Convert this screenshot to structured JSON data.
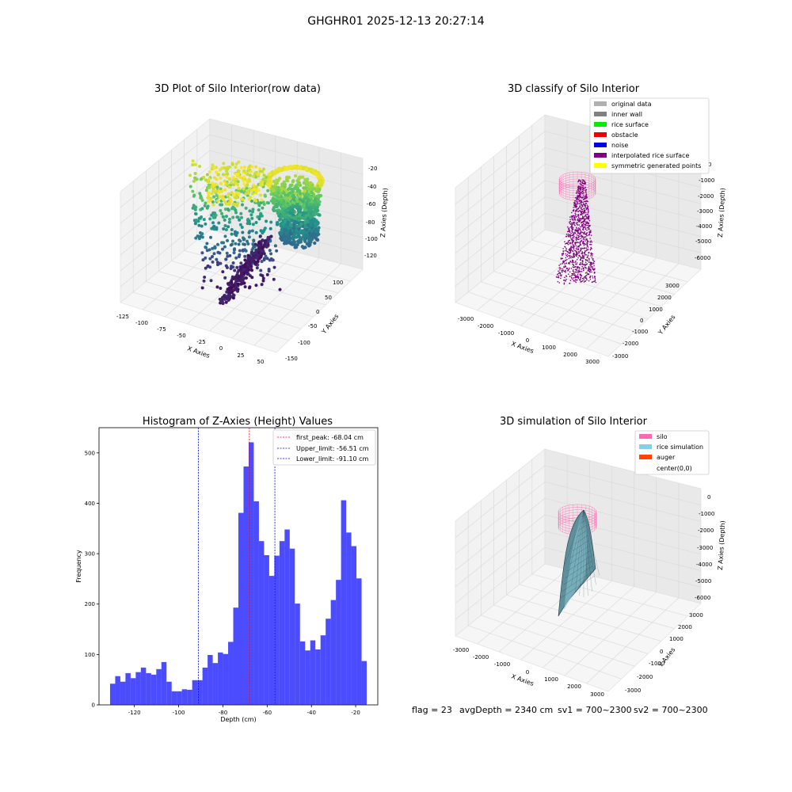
{
  "suptitle": "GHGHR01 2025-12-13 20:27:14",
  "panels": {
    "raw": {
      "title": "3D Plot of Silo Interior(row data)",
      "xlabel": "X Axies",
      "ylabel": "Y Axies",
      "zlabel": "Z Axies (Depth)",
      "xticks": [
        "-125",
        "-100",
        "-75",
        "-50",
        "-25",
        "0",
        "25",
        "50"
      ],
      "yticks": [
        "100",
        "50",
        "0",
        "-50",
        "-100",
        "-150"
      ],
      "zticks": [
        "-20",
        "-40",
        "-60",
        "-80",
        "-100",
        "-120"
      ],
      "colormap": "viridis"
    },
    "classify": {
      "title": "3D classify of Silo Interior",
      "xlabel": "X Axies",
      "ylabel": "Y Axies",
      "zlabel": "Z Axies (Depth)",
      "xticks": [
        "-3000",
        "-2000",
        "-1000",
        "0",
        "1000",
        "2000",
        "3000"
      ],
      "yticks": [
        "3000",
        "2000",
        "1000",
        "0",
        "-1000",
        "-2000",
        "-3000"
      ],
      "zticks": [
        "0",
        "-1000",
        "-2000",
        "-3000",
        "-4000",
        "-5000",
        "-6000"
      ],
      "legend": [
        {
          "label": "original data",
          "color": "#b0b0b0"
        },
        {
          "label": "inner wall",
          "color": "#808080"
        },
        {
          "label": "rice surface",
          "color": "#00ee00"
        },
        {
          "label": "obstacle",
          "color": "#ee0000"
        },
        {
          "label": "noise",
          "color": "#0000dd"
        },
        {
          "label": "interpolated rice surface",
          "color": "#800080"
        },
        {
          "label": "symmetric generated points",
          "color": "#ffff00"
        }
      ]
    },
    "simulation": {
      "title": "3D simulation of Silo Interior",
      "xlabel": "X Axies",
      "ylabel": "Y Axies",
      "zlabel": "Z Axies (Depth)",
      "xticks": [
        "-3000",
        "-2000",
        "-1000",
        "0",
        "1000",
        "2000",
        "3000"
      ],
      "yticks": [
        "3000",
        "2000",
        "1000",
        "0",
        "-1000",
        "-2000",
        "-3000"
      ],
      "zticks": [
        "0",
        "-1000",
        "-2000",
        "-3000",
        "-4000",
        "-5000",
        "-6000"
      ],
      "legend": [
        {
          "label": "silo",
          "color": "#ff69b4"
        },
        {
          "label": "rice simulation",
          "color": "#87ceeb"
        },
        {
          "label": "auger",
          "color": "#ff4500"
        },
        {
          "label": "center(0,0)",
          "color": "none"
        }
      ],
      "status": {
        "flag": "flag = 23",
        "avg": "avgDepth = 2340 cm",
        "sv1": "sv1 = 700~2300",
        "sv2": "sv2 = 700~2300"
      }
    }
  },
  "chart_data": {
    "type": "bar",
    "title": "Histogram of Z-Axies (Height) Values",
    "xlabel": "Depth (cm)",
    "ylabel": "Frequency",
    "xlim": [
      -136,
      -10
    ],
    "ylim": [
      0,
      550
    ],
    "xticks": [
      -120,
      -100,
      -80,
      -60,
      -40,
      -20
    ],
    "yticks": [
      0,
      100,
      200,
      300,
      400,
      500
    ],
    "bar_color": "#0000ff",
    "bin_start": -131.0,
    "bin_width": 2.32,
    "values": [
      42,
      57,
      46,
      63,
      53,
      65,
      74,
      63,
      60,
      71,
      85,
      46,
      27,
      27,
      31,
      30,
      49,
      49,
      74,
      99,
      83,
      104,
      101,
      125,
      193,
      381,
      473,
      521,
      404,
      325,
      297,
      256,
      296,
      325,
      348,
      310,
      201,
      126,
      108,
      128,
      110,
      138,
      171,
      208,
      248,
      406,
      342,
      315,
      251,
      87
    ],
    "vlines": [
      {
        "label": "first_peak: -68.04 cm",
        "x": -68.04,
        "color": "#ff0000"
      },
      {
        "label": "Upper_limit: -56.51 cm",
        "x": -56.51,
        "color": "#0000ff"
      },
      {
        "label": "Lower_limit: -91.10 cm",
        "x": -91.1,
        "color": "#0000ff"
      }
    ],
    "legend_position": "upper right"
  }
}
